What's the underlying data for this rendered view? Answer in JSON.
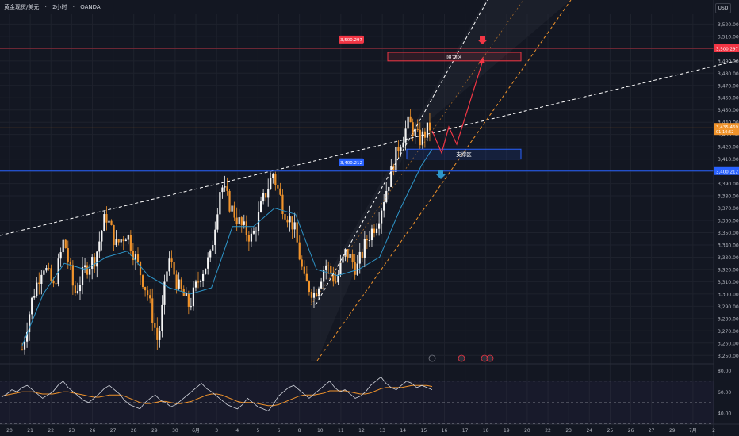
{
  "header": {
    "symbol": "黄金现货/美元",
    "sep1": "·",
    "interval": "2小时",
    "sep2": "·",
    "source": "OANDA",
    "currency": "USD"
  },
  "colors": {
    "background": "#131722",
    "up_candle": "#f5f5f5",
    "down_candle": "#f0932b",
    "ma": "#2e95c8",
    "resistance": "#f23645",
    "support": "#2962ff",
    "channel_dashed": "#f0932b",
    "trend_dashed": "#ffffff",
    "rsi": "#d1d4dc",
    "rsi_ma": "#f0932b"
  },
  "chart_data": [
    {
      "type": "line",
      "name": "price",
      "ylim": [
        3245,
        3528
      ],
      "y_ticks": [
        "3,520.000",
        "3,510.000",
        "3,500.000",
        "3,490.000",
        "3,480.000",
        "3,470.000",
        "3,460.000",
        "3,450.000",
        "3,440.000",
        "3,430.000",
        "3,420.000",
        "3,410.000",
        "3,400.000",
        "3,390.000",
        "3,380.000",
        "3,370.000",
        "3,360.000",
        "3,350.000",
        "3,340.000",
        "3,330.000",
        "3,320.000",
        "3,310.000",
        "3,300.000",
        "3,290.000",
        "3,280.000",
        "3,270.000",
        "3,260.000",
        "3,250.000"
      ],
      "x_ticks": [
        "20",
        "21",
        "22",
        "23",
        "26",
        "27",
        "28",
        "29",
        "30",
        "6月",
        "3",
        "4",
        "5",
        "6",
        "8",
        "10",
        "11",
        "12",
        "13",
        "14",
        "15",
        "16",
        "17",
        "18",
        "19",
        "20",
        "22",
        "23",
        "24",
        "25",
        "26",
        "27",
        "29",
        "7月",
        "2"
      ],
      "series": [
        {
          "key": "close_path",
          "points": [
            [
              0,
              3255
            ],
            [
              1,
              3298
            ],
            [
              2,
              3325
            ],
            [
              3,
              3305
            ],
            [
              4,
              3345
            ],
            [
              5,
              3300
            ],
            [
              6,
              3320
            ],
            [
              7,
              3330
            ],
            [
              8,
              3365
            ],
            [
              9,
              3340
            ],
            [
              10,
              3350
            ],
            [
              11,
              3325
            ],
            [
              12,
              3300
            ],
            [
              13,
              3260
            ],
            [
              14,
              3330
            ],
            [
              15,
              3305
            ],
            [
              16,
              3290
            ],
            [
              17,
              3315
            ],
            [
              18,
              3330
            ],
            [
              19,
              3390
            ],
            [
              20,
              3370
            ],
            [
              21,
              3355
            ],
            [
              22,
              3345
            ],
            [
              23,
              3375
            ],
            [
              24,
              3398
            ],
            [
              25,
              3370
            ],
            [
              26,
              3355
            ],
            [
              27,
              3310
            ],
            [
              28,
              3300
            ],
            [
              29,
              3325
            ],
            [
              30,
              3310
            ],
            [
              31,
              3335
            ],
            [
              32,
              3320
            ],
            [
              33,
              3345
            ],
            [
              34,
              3360
            ],
            [
              35,
              3390
            ],
            [
              36,
              3420
            ],
            [
              37,
              3440
            ],
            [
              38,
              3425
            ],
            [
              39,
              3436
            ]
          ],
          "x_start_index": 0,
          "x_end_index": 24.5
        },
        {
          "key": "ma",
          "points": [
            [
              0,
              3258
            ],
            [
              2,
              3300
            ],
            [
              4,
              3325
            ],
            [
              6,
              3320
            ],
            [
              8,
              3330
            ],
            [
              10,
              3335
            ],
            [
              12,
              3315
            ],
            [
              14,
              3305
            ],
            [
              16,
              3300
            ],
            [
              18,
              3305
            ],
            [
              20,
              3355
            ],
            [
              22,
              3355
            ],
            [
              24,
              3370
            ],
            [
              26,
              3365
            ],
            [
              28,
              3320
            ],
            [
              30,
              3315
            ],
            [
              32,
              3320
            ],
            [
              34,
              3330
            ],
            [
              36,
              3370
            ],
            [
              38,
              3405
            ],
            [
              39,
              3418
            ]
          ]
        }
      ],
      "horizontal_levels": [
        {
          "name": "resistance",
          "value": 3500.297,
          "label": "3,500.297"
        },
        {
          "name": "support",
          "value": 3400.212,
          "label": "3,400.212"
        }
      ],
      "current_price": {
        "label": "3,435.469",
        "countdown": "01:10:52"
      },
      "zones": [
        {
          "label": "阻力区",
          "from": 3490,
          "to": 3497
        },
        {
          "label": "支撑区",
          "from": 3410,
          "to": 3418
        }
      ]
    },
    {
      "type": "line",
      "name": "rsi",
      "ylim": [
        32,
        84
      ],
      "y_ticks": [
        "80.00",
        "60.00",
        "40.00"
      ],
      "series": [
        {
          "key": "rsi",
          "values": [
            55,
            58,
            62,
            60,
            64,
            66,
            62,
            58,
            54,
            57,
            60,
            66,
            70,
            64,
            60,
            56,
            52,
            50,
            54,
            58,
            63,
            66,
            62,
            58,
            52,
            48,
            46,
            44,
            50,
            54,
            57,
            52,
            50,
            46,
            48,
            52,
            56,
            60,
            64,
            68,
            63,
            60,
            56,
            52,
            48,
            46,
            44,
            48,
            54,
            50,
            46,
            44,
            42,
            48,
            56,
            60,
            64,
            66,
            62,
            58,
            54,
            58,
            62,
            66,
            70,
            64,
            60,
            62,
            58,
            54,
            56,
            60,
            66,
            70,
            74,
            68,
            64,
            62,
            66,
            70,
            68,
            64,
            66,
            64,
            62
          ]
        },
        {
          "key": "rsi_ma",
          "values": [
            56,
            57,
            58,
            59,
            60,
            60,
            60,
            59,
            58,
            58,
            58,
            59,
            60,
            60,
            59,
            58,
            57,
            56,
            55,
            55,
            56,
            57,
            57,
            57,
            56,
            54,
            52,
            50,
            49,
            49,
            50,
            51,
            51,
            50,
            49,
            49,
            50,
            51,
            53,
            55,
            57,
            58,
            58,
            57,
            55,
            53,
            51,
            50,
            50,
            50,
            49,
            48,
            47,
            47,
            48,
            50,
            52,
            54,
            56,
            57,
            57,
            57,
            58,
            59,
            61,
            61,
            61,
            61,
            60,
            59,
            58,
            58,
            59,
            61,
            63,
            64,
            64,
            64,
            64,
            65,
            66,
            66,
            66,
            66,
            65
          ]
        }
      ],
      "levels": [
        70,
        50,
        30
      ]
    }
  ],
  "annotations": {
    "projection_arrow": "red zig-zag to resistance zone",
    "down_arrow": "red",
    "up_arrow": "blue"
  }
}
